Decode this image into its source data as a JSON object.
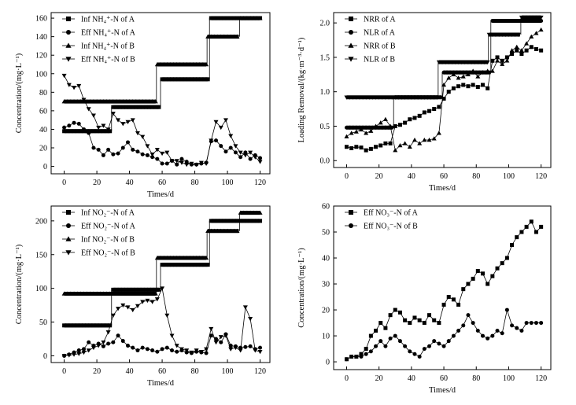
{
  "chart_data": [
    {
      "type": "line",
      "panel": "top-left",
      "xlabel": "Times/d",
      "ylabel": "Concentration/(mg·L⁻¹)",
      "xlim": [
        -8,
        126
      ],
      "ylim": [
        -8,
        166
      ],
      "xticks": [
        0,
        20,
        40,
        60,
        80,
        100,
        120
      ],
      "yticks": [
        0,
        20,
        40,
        60,
        80,
        100,
        120,
        140,
        160
      ],
      "legend_position": "top-left",
      "series": [
        {
          "name": "Inf NH₄⁺-N of A",
          "marker": "square",
          "style": "step",
          "steps": [
            [
              0,
              28,
              38
            ],
            [
              30,
              58,
              64
            ],
            [
              60,
              88,
              94
            ],
            [
              90,
              120,
              160
            ]
          ]
        },
        {
          "name": "Eff NH₄⁺-N of A",
          "marker": "circle",
          "style": "line",
          "x": [
            0,
            3,
            6,
            9,
            12,
            15,
            18,
            21,
            24,
            27,
            30,
            33,
            36,
            39,
            42,
            45,
            48,
            51,
            54,
            57,
            60,
            63,
            66,
            69,
            72,
            75,
            78,
            81,
            84,
            87,
            90,
            93,
            96,
            99,
            102,
            105,
            108,
            111,
            114,
            117,
            120
          ],
          "y": [
            42,
            44,
            47,
            46,
            40,
            36,
            20,
            18,
            12,
            18,
            13,
            14,
            20,
            26,
            18,
            16,
            13,
            12,
            10,
            8,
            3,
            3,
            6,
            2,
            8,
            5,
            2,
            2,
            3,
            4,
            27,
            28,
            22,
            16,
            20,
            15,
            10,
            15,
            8,
            12,
            9
          ]
        },
        {
          "name": "Inf NH₄⁺-N of B",
          "marker": "triangle-up",
          "style": "step",
          "steps": [
            [
              0,
              56,
              70
            ],
            [
              57,
              87,
              110
            ],
            [
              88,
              107,
              140
            ],
            [
              108,
              120,
              160
            ]
          ]
        },
        {
          "name": "Eff NH₄⁺-N of B",
          "marker": "triangle-down",
          "style": "line",
          "x": [
            0,
            3,
            6,
            9,
            12,
            15,
            18,
            21,
            24,
            27,
            30,
            33,
            36,
            39,
            42,
            45,
            48,
            51,
            54,
            57,
            60,
            63,
            66,
            69,
            72,
            75,
            78,
            81,
            84,
            87,
            90,
            93,
            96,
            99,
            102,
            105,
            108,
            111,
            114,
            117,
            120
          ],
          "y": [
            98,
            88,
            85,
            87,
            72,
            62,
            55,
            42,
            44,
            40,
            57,
            50,
            46,
            48,
            50,
            36,
            32,
            22,
            13,
            18,
            14,
            15,
            6,
            6,
            4,
            2,
            3,
            2,
            4,
            3,
            28,
            48,
            42,
            50,
            33,
            22,
            15,
            12,
            15,
            10,
            5
          ]
        }
      ]
    },
    {
      "type": "line",
      "panel": "top-right",
      "xlabel": "Times/d",
      "ylabel": "Loading Removal/(kg·m⁻³·d⁻¹)",
      "xlim": [
        -8,
        126
      ],
      "ylim": [
        -0.1,
        2.15
      ],
      "xticks": [
        0,
        20,
        40,
        60,
        80,
        100,
        120
      ],
      "yticks": [
        0.0,
        0.5,
        1.0,
        1.5,
        2.0
      ],
      "legend_position": "top-left",
      "series": [
        {
          "name": "NRR of A",
          "marker": "square",
          "style": "line",
          "x": [
            0,
            3,
            6,
            9,
            12,
            15,
            18,
            21,
            24,
            27,
            30,
            33,
            36,
            39,
            42,
            45,
            48,
            51,
            54,
            57,
            60,
            63,
            66,
            69,
            72,
            75,
            78,
            81,
            84,
            87,
            90,
            93,
            96,
            99,
            102,
            105,
            108,
            111,
            114,
            117,
            120
          ],
          "y": [
            0.2,
            0.18,
            0.2,
            0.19,
            0.15,
            0.17,
            0.2,
            0.22,
            0.25,
            0.25,
            0.5,
            0.52,
            0.55,
            0.6,
            0.62,
            0.65,
            0.7,
            0.72,
            0.75,
            0.78,
            0.9,
            1.0,
            1.05,
            1.08,
            1.1,
            1.08,
            1.1,
            1.07,
            1.1,
            1.05,
            1.45,
            1.5,
            1.45,
            1.5,
            1.55,
            1.6,
            1.55,
            1.6,
            1.65,
            1.62,
            1.6
          ]
        },
        {
          "name": "NLR of A",
          "marker": "circle",
          "style": "step",
          "steps": [
            [
              0,
              28,
              0.48
            ],
            [
              30,
              58,
              0.92
            ],
            [
              60,
              88,
              1.28
            ],
            [
              90,
              120,
              2.03
            ]
          ]
        },
        {
          "name": "NRR of B",
          "marker": "triangle-up",
          "style": "line",
          "x": [
            0,
            3,
            6,
            9,
            12,
            15,
            18,
            21,
            24,
            27,
            30,
            33,
            36,
            39,
            42,
            45,
            48,
            51,
            54,
            57,
            60,
            63,
            66,
            69,
            72,
            75,
            78,
            81,
            84,
            87,
            90,
            93,
            96,
            99,
            102,
            105,
            108,
            111,
            114,
            117,
            120
          ],
          "y": [
            0.35,
            0.4,
            0.42,
            0.45,
            0.4,
            0.43,
            0.5,
            0.55,
            0.6,
            0.5,
            0.15,
            0.22,
            0.25,
            0.2,
            0.3,
            0.25,
            0.3,
            0.3,
            0.32,
            0.4,
            1.1,
            1.2,
            1.25,
            1.2,
            1.22,
            1.25,
            1.3,
            1.22,
            1.28,
            1.3,
            1.3,
            1.45,
            1.4,
            1.45,
            1.6,
            1.65,
            1.6,
            1.7,
            1.8,
            1.85,
            1.9
          ]
        },
        {
          "name": "NLR of B",
          "marker": "triangle-down",
          "style": "step",
          "steps": [
            [
              0,
              56,
              0.92
            ],
            [
              57,
              87,
              1.43
            ],
            [
              88,
              107,
              1.83
            ],
            [
              108,
              120,
              2.08
            ]
          ]
        }
      ]
    },
    {
      "type": "line",
      "panel": "bottom-left",
      "xlabel": "Times/d",
      "ylabel": "Concentration/(mg·L⁻¹)",
      "xlim": [
        -8,
        126
      ],
      "ylim": [
        -10,
        222
      ],
      "xticks": [
        0,
        20,
        40,
        60,
        80,
        100,
        120
      ],
      "yticks": [
        0,
        50,
        100,
        150,
        200
      ],
      "legend_position": "top-left",
      "series": [
        {
          "name": "Inf NO₂⁻-N of A",
          "marker": "square",
          "style": "step",
          "steps": [
            [
              0,
              28,
              45
            ],
            [
              30,
              58,
              98
            ],
            [
              60,
              88,
              135
            ],
            [
              90,
              120,
              200
            ]
          ]
        },
        {
          "name": "Eff NO₂⁻-N of A",
          "marker": "circle",
          "style": "line",
          "x": [
            0,
            3,
            6,
            9,
            12,
            15,
            18,
            21,
            24,
            27,
            30,
            33,
            36,
            39,
            42,
            45,
            48,
            51,
            54,
            57,
            60,
            63,
            66,
            69,
            72,
            75,
            78,
            81,
            84,
            87,
            90,
            93,
            96,
            99,
            102,
            105,
            108,
            111,
            114,
            117,
            120
          ],
          "y": [
            0,
            2,
            5,
            8,
            10,
            20,
            15,
            18,
            14,
            18,
            20,
            30,
            22,
            15,
            12,
            8,
            12,
            10,
            8,
            6,
            10,
            12,
            8,
            6,
            8,
            5,
            4,
            6,
            5,
            4,
            30,
            25,
            20,
            32,
            15,
            14,
            12,
            13,
            14,
            10,
            12
          ]
        },
        {
          "name": "Inf NO₂⁻-N of B",
          "marker": "triangle-up",
          "style": "step",
          "steps": [
            [
              0,
              56,
              92
            ],
            [
              57,
              87,
              145
            ],
            [
              88,
              107,
              185
            ],
            [
              108,
              120,
              212
            ]
          ]
        },
        {
          "name": "Eff NO₂⁻-N of B",
          "marker": "triangle-down",
          "style": "line",
          "x": [
            0,
            3,
            6,
            9,
            12,
            15,
            18,
            21,
            24,
            27,
            30,
            33,
            36,
            39,
            42,
            45,
            48,
            51,
            54,
            57,
            60,
            63,
            66,
            69,
            72,
            75,
            78,
            81,
            84,
            87,
            90,
            93,
            96,
            99,
            102,
            105,
            108,
            111,
            114,
            117,
            120
          ],
          "y": [
            0,
            1,
            2,
            3,
            5,
            8,
            12,
            15,
            20,
            35,
            60,
            70,
            75,
            72,
            68,
            74,
            80,
            82,
            80,
            84,
            100,
            60,
            30,
            15,
            10,
            8,
            5,
            8,
            6,
            10,
            40,
            20,
            28,
            30,
            10,
            12,
            8,
            72,
            55,
            8,
            6
          ]
        }
      ]
    },
    {
      "type": "line",
      "panel": "bottom-right",
      "xlabel": "Times/d",
      "ylabel": "Concentration/(mg·L⁻¹)",
      "xlim": [
        -8,
        126
      ],
      "ylim": [
        -3,
        60
      ],
      "xticks": [
        0,
        20,
        40,
        60,
        80,
        100,
        120
      ],
      "yticks": [
        0,
        10,
        20,
        30,
        40,
        50,
        60
      ],
      "legend_position": "top-left",
      "series": [
        {
          "name": "Eff NO₃⁻-N of A",
          "marker": "square",
          "style": "line",
          "x": [
            0,
            3,
            6,
            9,
            12,
            15,
            18,
            21,
            24,
            27,
            30,
            33,
            36,
            39,
            42,
            45,
            48,
            51,
            54,
            57,
            60,
            63,
            66,
            69,
            72,
            75,
            78,
            81,
            84,
            87,
            90,
            93,
            96,
            99,
            102,
            105,
            108,
            111,
            114,
            117,
            120
          ],
          "y": [
            1,
            2,
            2,
            3,
            5,
            10,
            12,
            15,
            13,
            18,
            20,
            19,
            16,
            15,
            17,
            16,
            15,
            18,
            16,
            15,
            22,
            25,
            24,
            22,
            28,
            30,
            32,
            35,
            34,
            30,
            33,
            36,
            38,
            40,
            45,
            48,
            50,
            52,
            54,
            50,
            52
          ]
        },
        {
          "name": "Eff NO₃⁻-N of B",
          "marker": "circle",
          "style": "line",
          "x": [
            0,
            3,
            6,
            9,
            12,
            15,
            18,
            21,
            24,
            27,
            30,
            33,
            36,
            39,
            42,
            45,
            48,
            51,
            54,
            57,
            60,
            63,
            66,
            69,
            72,
            75,
            78,
            81,
            84,
            87,
            90,
            93,
            96,
            99,
            102,
            105,
            108,
            111,
            114,
            117,
            120
          ],
          "y": [
            1,
            2,
            2,
            2,
            3,
            4,
            6,
            8,
            6,
            9,
            10,
            8,
            6,
            4,
            3,
            2,
            5,
            6,
            8,
            7,
            6,
            8,
            10,
            12,
            14,
            18,
            15,
            12,
            10,
            9,
            10,
            12,
            11,
            20,
            14,
            13,
            12,
            15,
            15,
            15,
            15
          ]
        }
      ]
    }
  ]
}
